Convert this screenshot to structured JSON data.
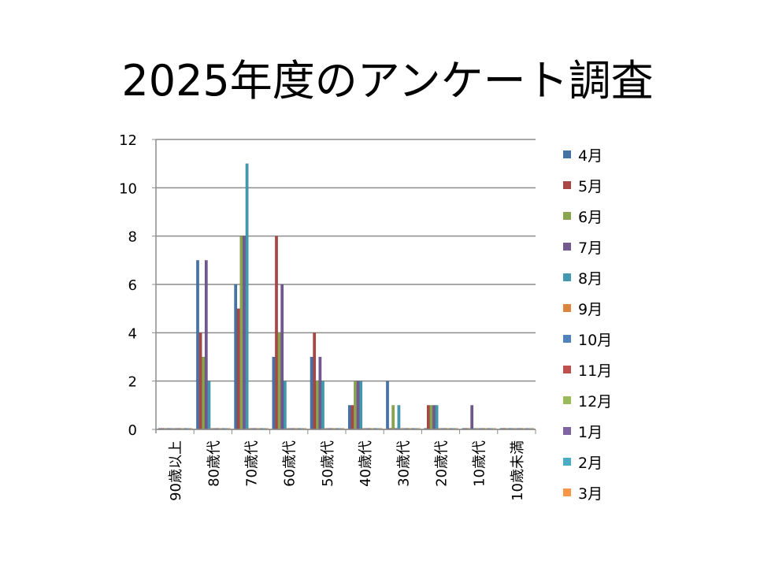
{
  "chart_data": {
    "type": "bar",
    "title": "2025年度のアンケート調査",
    "xlabel": "",
    "ylabel": "",
    "ylim": [
      0,
      12
    ],
    "yticks": [
      "0",
      "2",
      "4",
      "6",
      "8",
      "10",
      "12"
    ],
    "grid": true,
    "legend_position": "right",
    "categories": [
      "90歳以上",
      "80歳代",
      "70歳代",
      "60歳代",
      "50歳代",
      "40歳代",
      "30歳代",
      "20歳代",
      "10歳代",
      "10歳未満"
    ],
    "series": [
      {
        "name": "4月",
        "color": "#4572A7",
        "values": [
          0,
          7,
          6,
          3,
          3,
          1,
          2,
          0,
          0,
          0
        ]
      },
      {
        "name": "5月",
        "color": "#AA4643",
        "values": [
          0,
          4,
          5,
          8,
          4,
          1,
          0,
          1,
          0,
          0
        ]
      },
      {
        "name": "6月",
        "color": "#89A54E",
        "values": [
          0,
          3,
          8,
          4,
          2,
          2,
          1,
          1,
          0,
          0
        ]
      },
      {
        "name": "7月",
        "color": "#71588F",
        "values": [
          0,
          7,
          8,
          6,
          3,
          2,
          0,
          1,
          1,
          0
        ]
      },
      {
        "name": "8月",
        "color": "#4198AF",
        "values": [
          0,
          2,
          11,
          2,
          2,
          2,
          1,
          1,
          0,
          0
        ]
      },
      {
        "name": "9月",
        "color": "#DB843D",
        "values": [
          0,
          0,
          0,
          0,
          0,
          0,
          0,
          0,
          0,
          0
        ]
      },
      {
        "name": "10月",
        "color": "#4F81BD",
        "values": [
          0,
          0,
          0,
          0,
          0,
          0,
          0,
          0,
          0,
          0
        ]
      },
      {
        "name": "11月",
        "color": "#C0504D",
        "values": [
          0,
          0,
          0,
          0,
          0,
          0,
          0,
          0,
          0,
          0
        ]
      },
      {
        "name": "12月",
        "color": "#9BBB59",
        "values": [
          0,
          0,
          0,
          0,
          0,
          0,
          0,
          0,
          0,
          0
        ]
      },
      {
        "name": "1月",
        "color": "#8064A2",
        "values": [
          0,
          0,
          0,
          0,
          0,
          0,
          0,
          0,
          0,
          0
        ]
      },
      {
        "name": "2月",
        "color": "#4BACC6",
        "values": [
          0,
          0,
          0,
          0,
          0,
          0,
          0,
          0,
          0,
          0
        ]
      },
      {
        "name": "3月",
        "color": "#F79646",
        "values": [
          0,
          0,
          0,
          0,
          0,
          0,
          0,
          0,
          0,
          0
        ]
      }
    ]
  }
}
